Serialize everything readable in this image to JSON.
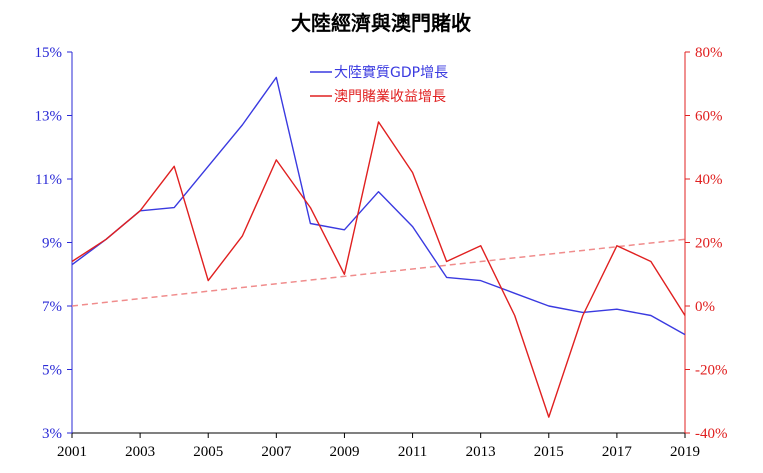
{
  "chart_data": {
    "type": "line",
    "title": "大陸經濟與澳門賭收",
    "x": [
      2001,
      2002,
      2003,
      2004,
      2005,
      2006,
      2007,
      2008,
      2009,
      2010,
      2011,
      2012,
      2013,
      2014,
      2015,
      2016,
      2017,
      2018,
      2019
    ],
    "x_ticks": [
      "2001",
      "2003",
      "2005",
      "2007",
      "2009",
      "2011",
      "2013",
      "2015",
      "2017",
      "2019"
    ],
    "y_left": {
      "range": [
        3,
        15
      ],
      "ticks": [
        "3%",
        "5%",
        "7%",
        "9%",
        "11%",
        "13%",
        "15%"
      ],
      "color": "#2a2ad6"
    },
    "y_right": {
      "range": [
        -40,
        80
      ],
      "ticks": [
        "-40%",
        "-20%",
        "0%",
        "20%",
        "40%",
        "60%",
        "80%"
      ],
      "color": "#e02020"
    },
    "series": [
      {
        "name": "大陸實質GDP增長",
        "axis": "left",
        "color": "#3a3ae0",
        "values": [
          8.3,
          9.1,
          10.0,
          10.1,
          11.4,
          12.7,
          14.2,
          9.6,
          9.4,
          10.6,
          9.5,
          7.9,
          7.8,
          7.4,
          7.0,
          6.8,
          6.9,
          6.7,
          6.1
        ]
      },
      {
        "name": "澳門賭業收益增長",
        "axis": "right",
        "color": "#e02020",
        "values": [
          14,
          21,
          30,
          44,
          8,
          22,
          46,
          31,
          10,
          58,
          42,
          14,
          19,
          -3,
          -35,
          -3,
          19,
          14,
          -3
        ]
      }
    ],
    "trendline": {
      "axis": "right",
      "style": "dashed",
      "color": "#f08c8c",
      "values": [
        0,
        21
      ]
    },
    "legend": {
      "position": "top-center"
    },
    "grid": false
  }
}
